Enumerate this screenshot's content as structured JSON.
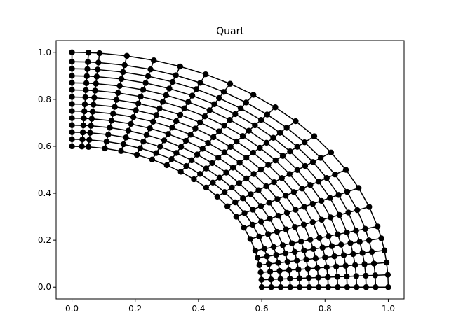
{
  "chart_data": {
    "type": "scatter",
    "title": "Quart",
    "xlabel": "",
    "ylabel": "",
    "xlim": [
      -0.05,
      1.05
    ],
    "ylim": [
      -0.05,
      1.05
    ],
    "x_ticks": [
      "0.0",
      "0.2",
      "0.4",
      "0.6",
      "0.8",
      "1.0"
    ],
    "y_ticks": [
      "0.0",
      "0.2",
      "0.4",
      "0.6",
      "0.8",
      "1.0"
    ],
    "grid": false,
    "legend": "none",
    "mesh": {
      "description_of_content": "quarter annulus structured mesh, points connected by lines",
      "r_inner": 0.6,
      "r_outer": 1.0,
      "radial_nodes": [
        0.6,
        0.63,
        0.66,
        0.69,
        0.72,
        0.75,
        0.78,
        0.81,
        0.84,
        0.87,
        0.9,
        0.93,
        0.96,
        1.0
      ],
      "angular_nodes_deg": [
        0,
        3,
        6,
        9,
        12,
        15,
        20,
        25,
        30,
        35,
        40,
        45,
        50,
        55,
        60,
        65,
        70,
        75,
        80,
        85,
        87,
        90
      ]
    },
    "marker_color": "#000000",
    "line_color": "#000000"
  }
}
